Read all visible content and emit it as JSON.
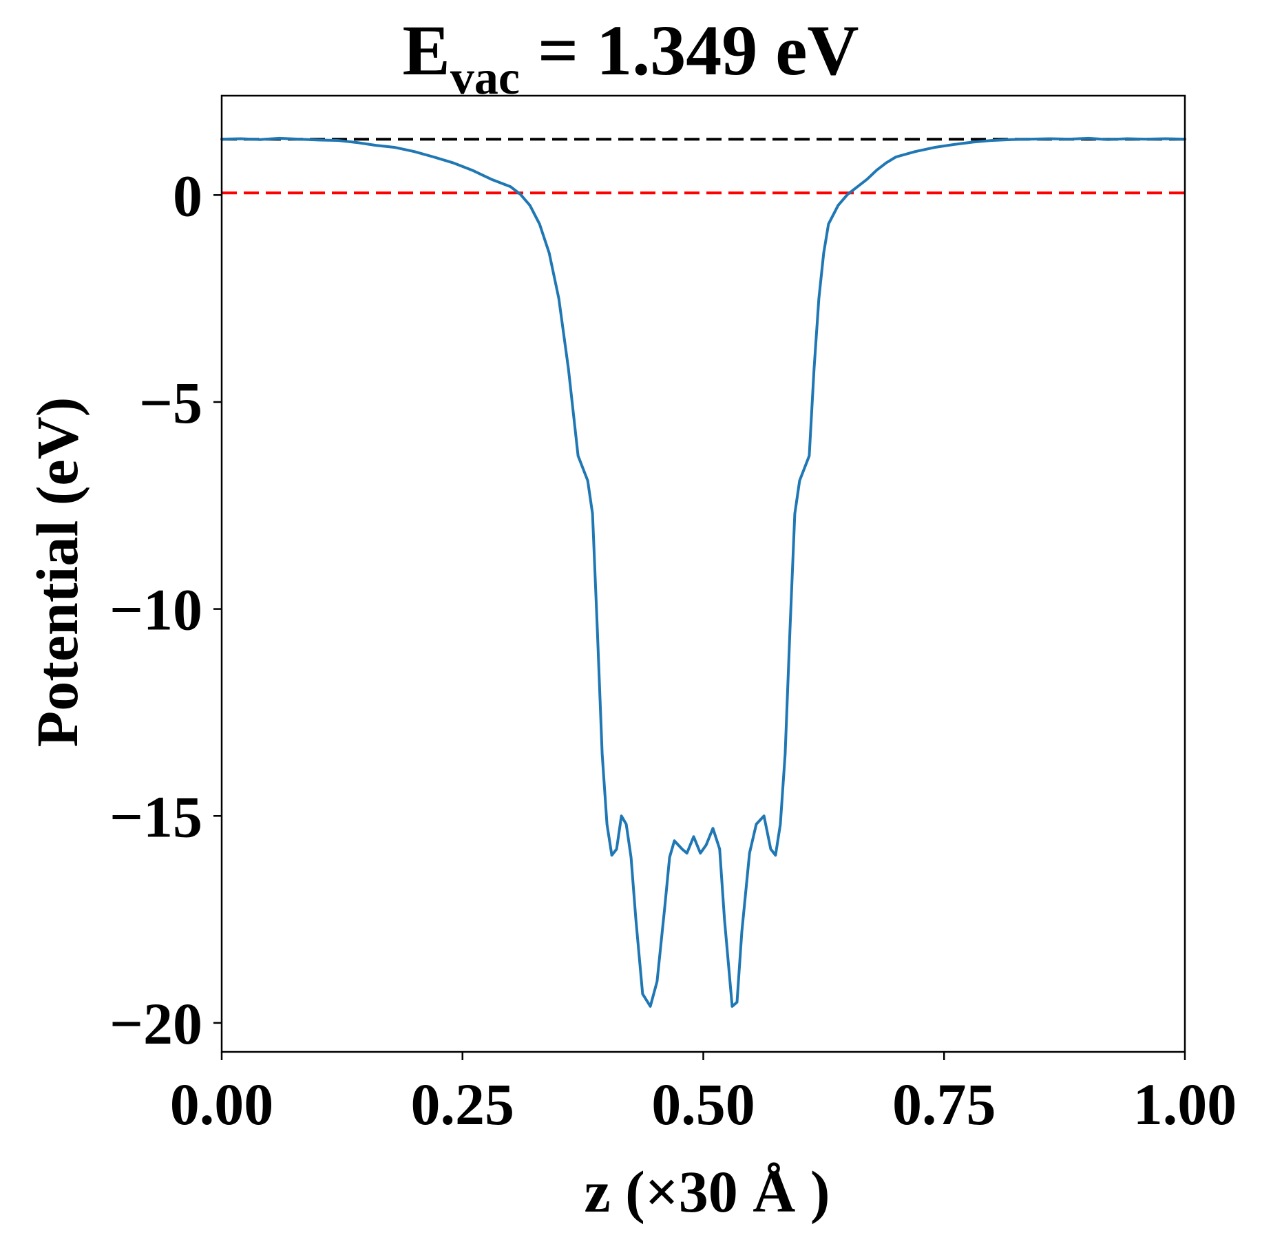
{
  "chart_data": {
    "type": "line",
    "title": {
      "main": "E",
      "subscript": "vac",
      "rest": " = 1.349 eV"
    },
    "xlabel": "z (×30 Å )",
    "ylabel": "Potential (eV)",
    "xlim": [
      0,
      1
    ],
    "ylim": [
      -20.7,
      2.4
    ],
    "xticks": [
      0.0,
      0.25,
      0.5,
      0.75,
      1.0
    ],
    "xtick_labels": [
      "0.00",
      "0.25",
      "0.50",
      "0.75",
      "1.00"
    ],
    "yticks": [
      0,
      -5,
      -10,
      -15,
      -20
    ],
    "ytick_labels": [
      "0",
      "−5",
      "−10",
      "−15",
      "−20"
    ],
    "grid": false,
    "reference_lines": [
      {
        "y": 1.349,
        "color": "#000000",
        "style": "dashed"
      },
      {
        "y": 0.05,
        "color": "#ff0000",
        "style": "dashed"
      }
    ],
    "series": [
      {
        "color": "#1f77b4",
        "x": [
          0.0,
          0.02,
          0.04,
          0.06,
          0.08,
          0.1,
          0.12,
          0.14,
          0.16,
          0.18,
          0.2,
          0.22,
          0.24,
          0.26,
          0.28,
          0.3,
          0.31,
          0.32,
          0.33,
          0.34,
          0.35,
          0.36,
          0.37,
          0.375,
          0.38,
          0.385,
          0.39,
          0.395,
          0.4,
          0.405,
          0.41,
          0.415,
          0.42,
          0.425,
          0.43,
          0.437,
          0.445,
          0.452,
          0.46,
          0.465,
          0.47,
          0.478,
          0.483,
          0.49,
          0.497,
          0.503,
          0.51,
          0.517,
          0.522,
          0.53,
          0.535,
          0.54,
          0.548,
          0.555,
          0.563,
          0.57,
          0.575,
          0.58,
          0.585,
          0.59,
          0.595,
          0.6,
          0.605,
          0.61,
          0.615,
          0.62,
          0.625,
          0.63,
          0.64,
          0.65,
          0.66,
          0.67,
          0.68,
          0.69,
          0.7,
          0.72,
          0.74,
          0.76,
          0.78,
          0.8,
          0.82,
          0.84,
          0.86,
          0.88,
          0.9,
          0.92,
          0.94,
          0.96,
          0.98,
          1.0
        ],
        "y": [
          1.35,
          1.36,
          1.34,
          1.37,
          1.35,
          1.33,
          1.32,
          1.27,
          1.2,
          1.15,
          1.05,
          0.92,
          0.78,
          0.6,
          0.38,
          0.2,
          0.02,
          -0.25,
          -0.7,
          -1.4,
          -2.5,
          -4.2,
          -6.3,
          -6.6,
          -6.9,
          -7.7,
          -10.5,
          -13.5,
          -15.2,
          -15.95,
          -15.8,
          -15.0,
          -15.2,
          -16.0,
          -17.5,
          -19.3,
          -19.6,
          -19.0,
          -17.2,
          -16.0,
          -15.6,
          -15.8,
          -15.9,
          -15.5,
          -15.9,
          -15.7,
          -15.3,
          -15.8,
          -17.5,
          -19.6,
          -19.5,
          -17.8,
          -15.9,
          -15.2,
          -15.0,
          -15.8,
          -15.95,
          -15.2,
          -13.5,
          -10.5,
          -7.7,
          -6.9,
          -6.6,
          -6.3,
          -4.2,
          -2.5,
          -1.4,
          -0.7,
          -0.25,
          0.02,
          0.2,
          0.38,
          0.6,
          0.78,
          0.92,
          1.05,
          1.15,
          1.22,
          1.28,
          1.32,
          1.34,
          1.35,
          1.36,
          1.35,
          1.37,
          1.34,
          1.36,
          1.35,
          1.36,
          1.35
        ]
      }
    ]
  }
}
